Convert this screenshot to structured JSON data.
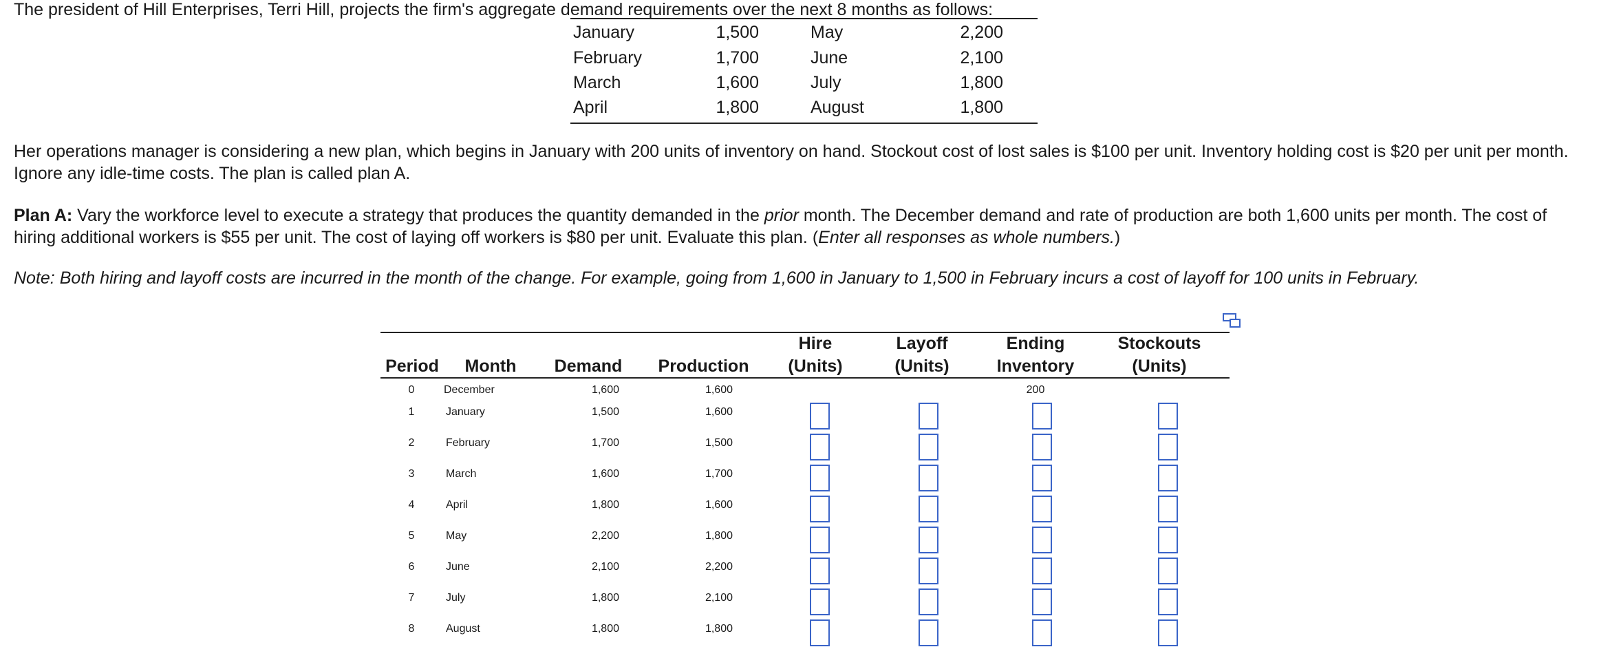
{
  "intro": "The president of Hill Enterprises, Terri Hill, projects the firm's aggregate demand requirements over the next 8 months as follows:",
  "demand_table": [
    {
      "m1": "January",
      "v1": "1,500",
      "m2": "May",
      "v2": "2,200"
    },
    {
      "m1": "February",
      "v1": "1,700",
      "m2": "June",
      "v2": "2,100"
    },
    {
      "m1": "March",
      "v1": "1,600",
      "m2": "July",
      "v2": "1,800"
    },
    {
      "m1": "April",
      "v1": "1,800",
      "m2": "August",
      "v2": "1,800"
    }
  ],
  "para1": "Her operations manager is considering a new plan, which begins in January with 200 units of inventory on hand. Stockout cost of lost sales is $100 per unit. Inventory holding cost is $20 per unit per month. Ignore any idle-time costs. The plan is called plan A.",
  "para2": {
    "label": "Plan A:",
    "t1": " Vary the workforce level to execute a strategy that produces the quantity demanded in the ",
    "em": "prior",
    "t2": " month. The December demand and rate of production are both 1,600 units per month. The cost of hiring additional workers is $55 per unit. The cost of laying off workers is $80 per unit. Evaluate this plan. (",
    "em2": "Enter all responses as whole numbers.",
    "t3": ")"
  },
  "note": "Note: Both hiring and layoff costs are incurred in the month of the change. For example, going from 1,600 in January to 1,500 in February incurs a cost of layoff for 100 units in February.",
  "table": {
    "headers": {
      "period": "Period",
      "month": "Month",
      "demand": "Demand",
      "production": "Production",
      "hire_1": "Hire",
      "hire_2": "(Units)",
      "layoff_1": "Layoff",
      "layoff_2": "(Units)",
      "ending_1": "Ending",
      "ending_2": "Inventory",
      "stockouts_1": "Stockouts",
      "stockouts_2": "(Units)"
    },
    "row0": {
      "period": "0",
      "month": "December",
      "demand": "1,600",
      "production": "1,600",
      "ending": "200"
    },
    "rows": [
      {
        "period": "1",
        "month": "January",
        "demand": "1,500",
        "production": "1,600"
      },
      {
        "period": "2",
        "month": "February",
        "demand": "1,700",
        "production": "1,500"
      },
      {
        "period": "3",
        "month": "March",
        "demand": "1,600",
        "production": "1,700"
      },
      {
        "period": "4",
        "month": "April",
        "demand": "1,800",
        "production": "1,600"
      },
      {
        "period": "5",
        "month": "May",
        "demand": "2,200",
        "production": "1,800"
      },
      {
        "period": "6",
        "month": "June",
        "demand": "2,100",
        "production": "2,200"
      },
      {
        "period": "7",
        "month": "July",
        "demand": "1,800",
        "production": "2,100"
      },
      {
        "period": "8",
        "month": "August",
        "demand": "1,800",
        "production": "1,800"
      }
    ]
  },
  "icons": {
    "expand": "expand-table-icon"
  }
}
